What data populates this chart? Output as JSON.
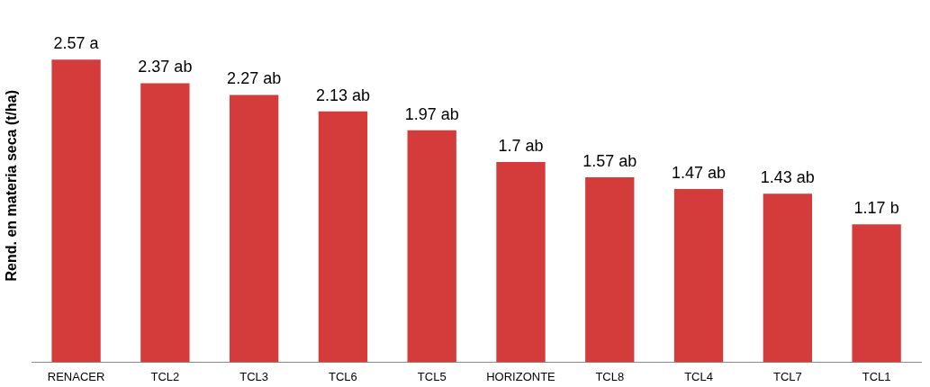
{
  "chart_data": {
    "type": "bar",
    "ylabel": "Rend. en materia seca (t/ha)",
    "categories": [
      "RENACER",
      "TCL2",
      "TCL3",
      "TCL6",
      "TCL5",
      "HORIZONTE",
      "TCL8",
      "TCL4",
      "TCL7",
      "TCL1"
    ],
    "values": [
      2.57,
      2.37,
      2.27,
      2.13,
      1.97,
      1.7,
      1.57,
      1.47,
      1.43,
      1.17
    ],
    "value_labels": [
      "2.57 a",
      "2.37 ab",
      "2.27 ab",
      "2.13 ab",
      "1.97 ab",
      "1.7 ab",
      "1.57 ab",
      "1.47 ab",
      "1.43 ab",
      "1.17 b"
    ],
    "color": "#d43b3b",
    "tick_labels": "x",
    "grid": false,
    "legend": false
  }
}
